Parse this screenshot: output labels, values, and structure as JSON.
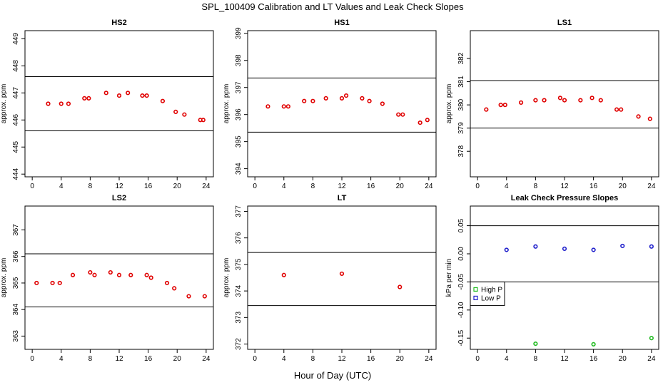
{
  "title": "SPL_100409  Calibration and LT Values and Leak Check Slopes",
  "xlabel": "Hour of Day (UTC)",
  "colors": {
    "calibration": "#e00000",
    "high_p": "#22bb22",
    "low_p": "#2222cc",
    "reference_line": "#000000"
  },
  "chart_data": [
    {
      "type": "scatter",
      "title": "HS2",
      "xlabel": "",
      "ylabel": "approx. ppm",
      "xlim": [
        -1,
        25
      ],
      "ylim": [
        443.9,
        449.3
      ],
      "xticks": [
        0,
        4,
        8,
        12,
        16,
        20,
        24
      ],
      "yticks": [
        444,
        445,
        446,
        447,
        448,
        449
      ],
      "hlines": [
        447.6,
        445.6
      ],
      "series": [
        {
          "color": "#e00000",
          "x": [
            2.2,
            4,
            5,
            7.2,
            7.8,
            10.2,
            12,
            13.2,
            15.2,
            15.8,
            18,
            19.8,
            21,
            23.2,
            23.6
          ],
          "y": [
            446.6,
            446.6,
            446.6,
            446.8,
            446.8,
            447.0,
            446.9,
            447.0,
            446.9,
            446.9,
            446.7,
            446.3,
            446.2,
            446.0,
            446.0
          ]
        }
      ]
    },
    {
      "type": "scatter",
      "title": "HS1",
      "xlabel": "",
      "ylabel": "approx. ppm",
      "xlim": [
        -1,
        25
      ],
      "ylim": [
        393.7,
        399.1
      ],
      "xticks": [
        0,
        4,
        8,
        12,
        16,
        20,
        24
      ],
      "yticks": [
        394,
        395,
        396,
        397,
        398,
        399
      ],
      "hlines": [
        397.35,
        395.35
      ],
      "series": [
        {
          "color": "#e00000",
          "x": [
            1.8,
            4,
            4.6,
            6.8,
            8,
            9.8,
            12,
            12.6,
            14.8,
            15.8,
            17.6,
            19.8,
            20.4,
            22.8,
            23.8
          ],
          "y": [
            396.3,
            396.3,
            396.3,
            396.5,
            396.5,
            396.6,
            396.6,
            396.7,
            396.6,
            396.5,
            396.4,
            396.0,
            396.0,
            395.7,
            395.8
          ]
        }
      ]
    },
    {
      "type": "scatter",
      "title": "LS1",
      "xlabel": "",
      "ylabel": "approx. ppm",
      "xlim": [
        -1,
        25
      ],
      "ylim": [
        376.9,
        383.2
      ],
      "xticks": [
        0,
        4,
        8,
        12,
        16,
        20,
        24
      ],
      "yticks": [
        378,
        379,
        380,
        381,
        382
      ],
      "hlines": [
        381.05,
        379.0
      ],
      "series": [
        {
          "color": "#e00000",
          "x": [
            1.2,
            3.2,
            3.8,
            6,
            8,
            9.2,
            11.4,
            12,
            14.2,
            15.8,
            17,
            19.2,
            19.8,
            22.2,
            23.8
          ],
          "y": [
            379.8,
            380.0,
            380.0,
            380.1,
            380.2,
            380.2,
            380.3,
            380.2,
            380.2,
            380.3,
            380.2,
            379.8,
            379.8,
            379.5,
            379.4
          ]
        }
      ]
    },
    {
      "type": "scatter",
      "title": "LS2",
      "xlabel": "",
      "ylabel": "approx. ppm",
      "xlim": [
        -1,
        25
      ],
      "ylim": [
        362.5,
        367.9
      ],
      "xticks": [
        0,
        4,
        8,
        12,
        16,
        20,
        24
      ],
      "yticks": [
        363,
        364,
        365,
        366,
        367
      ],
      "hlines": [
        366.1,
        364.1
      ],
      "series": [
        {
          "color": "#e00000",
          "x": [
            0.6,
            2.8,
            3.8,
            5.6,
            8,
            8.6,
            10.8,
            12,
            13.6,
            15.8,
            16.4,
            18.6,
            19.6,
            21.6,
            23.8
          ],
          "y": [
            365.0,
            365.0,
            365.0,
            365.3,
            365.4,
            365.3,
            365.4,
            365.3,
            365.3,
            365.3,
            365.2,
            365.0,
            364.8,
            364.5,
            364.5
          ]
        }
      ]
    },
    {
      "type": "scatter",
      "title": "LT",
      "xlabel": "",
      "ylabel": "approx. ppm",
      "xlim": [
        -1,
        25
      ],
      "ylim": [
        371.8,
        377.2
      ],
      "xticks": [
        0,
        4,
        8,
        12,
        16,
        20,
        24
      ],
      "yticks": [
        372,
        373,
        374,
        375,
        376,
        377
      ],
      "hlines": [
        375.45,
        373.45
      ],
      "series": [
        {
          "color": "#e00000",
          "x": [
            4,
            12,
            20
          ],
          "y": [
            374.6,
            374.65,
            374.15
          ]
        }
      ]
    },
    {
      "type": "scatter",
      "title": "Leak Check Pressure Slopes",
      "xlabel": "",
      "ylabel": "kPa per min",
      "xlim": [
        -1,
        25
      ],
      "ylim": [
        -0.17,
        0.085
      ],
      "xticks": [
        0,
        4,
        8,
        12,
        16,
        20,
        24
      ],
      "yticks": [
        -0.15,
        -0.1,
        -0.05,
        0.0,
        0.05
      ],
      "ytick_labels": [
        "-0.15",
        "-0.10",
        "-0.05",
        "0.00",
        "0.05"
      ],
      "hlines": [
        0.05,
        -0.05
      ],
      "legend": {
        "position": "left",
        "entries": [
          "High P",
          "Low P"
        ]
      },
      "series": [
        {
          "name": "High P",
          "color": "#22bb22",
          "x": [
            8,
            16,
            24
          ],
          "y": [
            -0.16,
            -0.161,
            -0.15
          ]
        },
        {
          "name": "Low P",
          "color": "#2222cc",
          "x": [
            4,
            8,
            12,
            16,
            20,
            24
          ],
          "y": [
            0.007,
            0.013,
            0.009,
            0.007,
            0.014,
            0.013
          ]
        }
      ]
    }
  ]
}
